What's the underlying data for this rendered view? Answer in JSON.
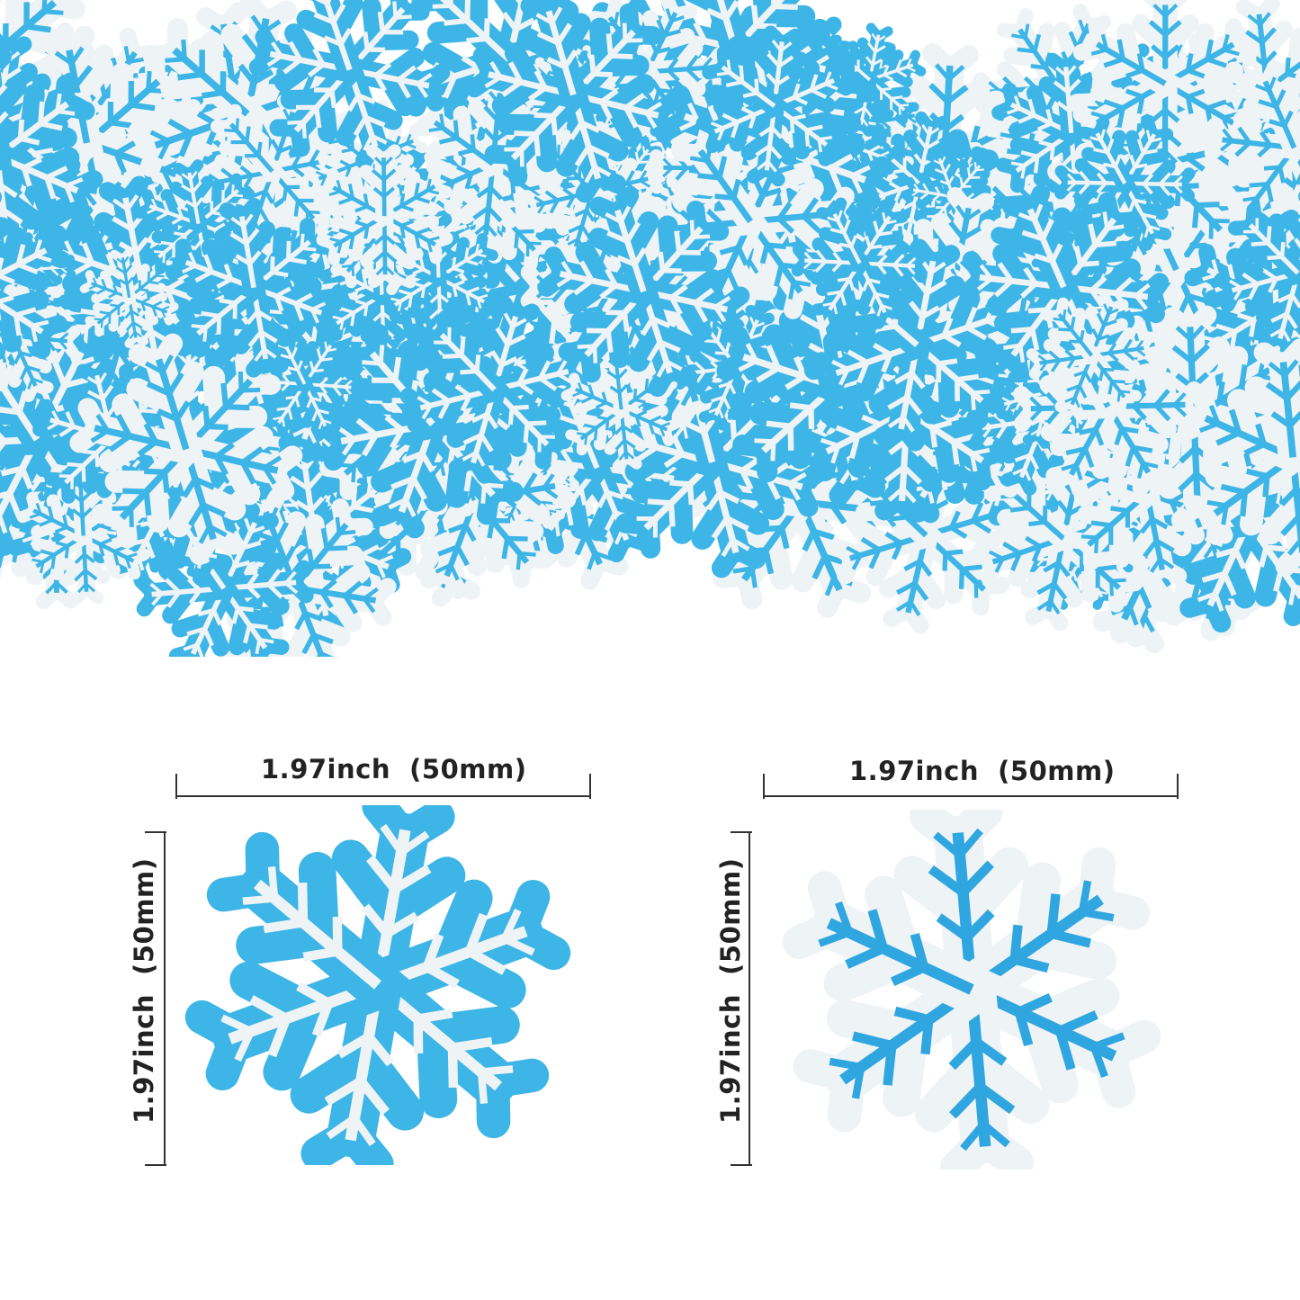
{
  "colors": {
    "blue": "#3db5e6",
    "white": "#eef3f6",
    "line": "#333333"
  },
  "samples": [
    {
      "width_label": "1.97inch  (50mm)",
      "height_label": "1.97inch  (50mm)",
      "base_color": "#3db5e6",
      "pattern_color": "#eef3f6"
    },
    {
      "width_label": "1.97inch  (50mm)",
      "height_label": "1.97inch  (50mm)",
      "base_color": "#eef3f6",
      "pattern_color": "#2fa6df"
    }
  ]
}
